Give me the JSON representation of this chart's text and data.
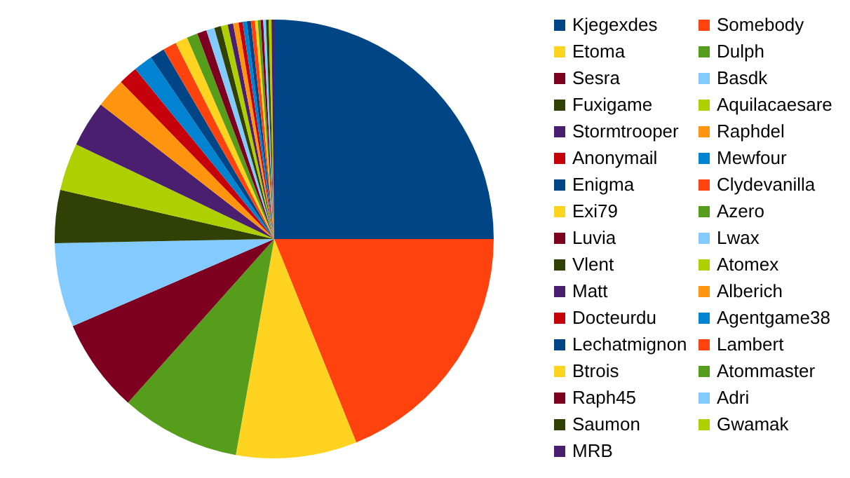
{
  "chart_data": {
    "type": "pie",
    "legend": "right",
    "categories": [
      "Kjegexdes",
      "Somebody",
      "Etoma",
      "Dulph",
      "Sesra",
      "Basdk",
      "Fuxigame",
      "Aquilacaesare",
      "Stormtrooper",
      "Raphdel",
      "Anonymail",
      "Mewfour",
      "Enigma",
      "Clydevanilla",
      "Exi79",
      "Azero",
      "Luvia",
      "Lwax",
      "Vlent",
      "Atomex",
      "Matt",
      "Alberich",
      "Docteurdu",
      "Agentgame38",
      "Lechatmignon",
      "Lambert",
      "Btrois",
      "Atommaster",
      "Raph45",
      "Adri",
      "Saumon",
      "Gwamak",
      "MRB"
    ],
    "values": [
      25,
      18.9,
      8.9,
      8.8,
      6.9,
      6.2,
      3.9,
      3.5,
      3.4,
      2.2,
      1.4,
      1.4,
      1.1,
      1.0,
      0.9,
      0.8,
      0.7,
      0.6,
      0.5,
      0.5,
      0.4,
      0.4,
      0.3,
      0.3,
      0.3,
      0.3,
      0.2,
      0.2,
      0.2,
      0.2,
      0.2,
      0.2,
      0.2
    ],
    "colors": [
      "#004586",
      "#ff420e",
      "#ffd320",
      "#579d1c",
      "#7e0021",
      "#83caff",
      "#314004",
      "#aecf00",
      "#4b1f6f",
      "#ff950e",
      "#c5000b",
      "#0084d1",
      "#004586",
      "#ff420e",
      "#ffd320",
      "#579d1c",
      "#7e0021",
      "#83caff",
      "#314004",
      "#aecf00",
      "#4b1f6f",
      "#ff950e",
      "#c5000b",
      "#0084d1",
      "#004586",
      "#ff420e",
      "#ffd320",
      "#579d1c",
      "#7e0021",
      "#83caff",
      "#314004",
      "#aecf00",
      "#4b1f6f"
    ]
  }
}
